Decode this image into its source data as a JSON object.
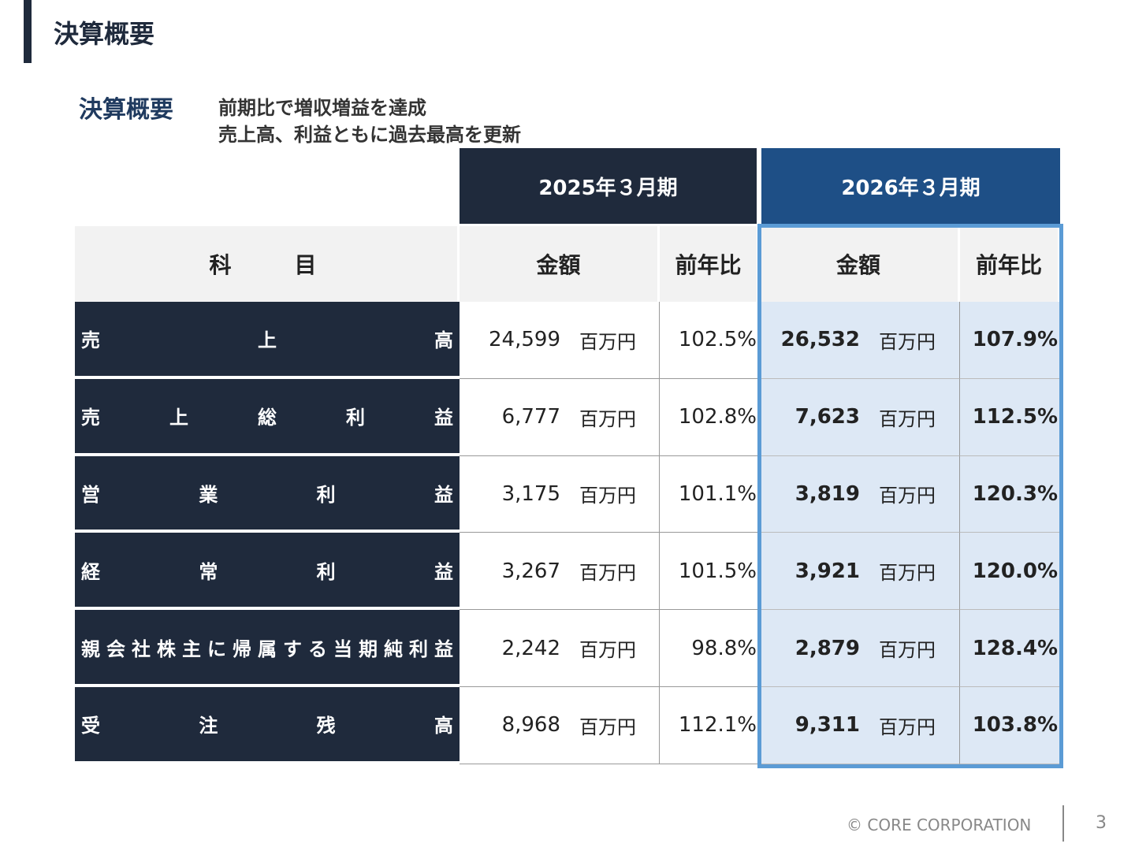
{
  "header": {
    "title": "決算概要"
  },
  "summary": {
    "label": "決算概要",
    "lines": [
      "前期比で増収増益を達成",
      "売上高、利益ともに過去最高を更新"
    ]
  },
  "table": {
    "periods": [
      "2025年３月期",
      "2026年３月期"
    ],
    "columns": [
      "科　　目",
      "金額",
      "前年比",
      "金額",
      "前年比"
    ],
    "unit": "百万円",
    "rows": [
      [
        "売上高",
        "24,599",
        "102.5%",
        "26,532",
        "107.9%"
      ],
      [
        "売上総利益",
        "6,777",
        "102.8%",
        "7,623",
        "112.5%"
      ],
      [
        "営業利益",
        "3,175",
        "101.1%",
        "3,819",
        "120.3%"
      ],
      [
        "経常利益",
        "3,267",
        "101.5%",
        "3,921",
        "120.0%"
      ],
      [
        "親会社株主に帰属する当期純利益",
        "2,242",
        "98.8%",
        "2,879",
        "128.4%"
      ],
      [
        "受注残高",
        "8,968",
        "112.1%",
        "9,311",
        "103.8%"
      ]
    ]
  },
  "footer": {
    "copyright": "© CORE CORPORATION",
    "page": "3"
  }
}
